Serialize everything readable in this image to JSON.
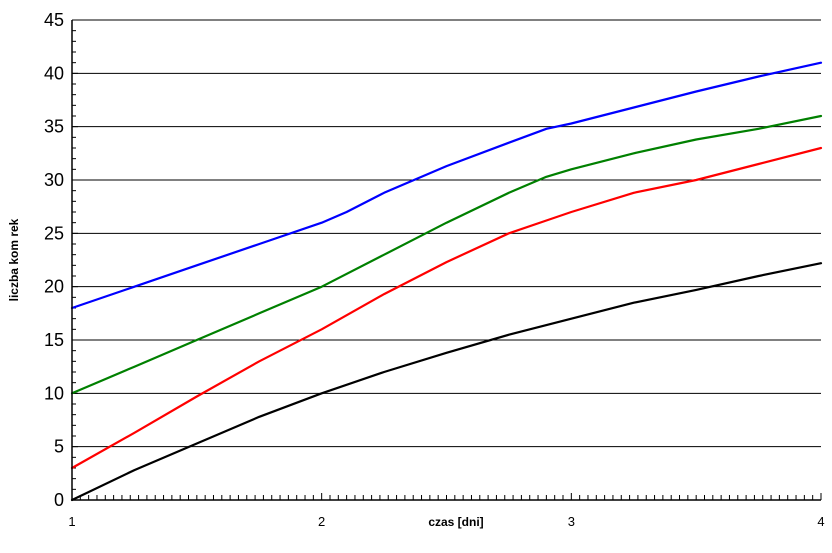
{
  "chart_data": {
    "type": "line",
    "xlabel": "czas [dni]",
    "ylabel": "liczba kom rek",
    "xlim": [
      1,
      4
    ],
    "ylim": [
      0,
      45
    ],
    "x_ticks": [
      "1",
      "2",
      "3",
      "4"
    ],
    "y_ticks": [
      "0",
      "5",
      "10",
      "15",
      "20",
      "25",
      "30",
      "35",
      "40",
      "45"
    ],
    "grid": "horizontal",
    "legend": "none",
    "series": [
      {
        "color": "#0000ff",
        "x": [
          1.0,
          1.25,
          1.5,
          1.75,
          2.0,
          2.1,
          2.25,
          2.5,
          2.75,
          2.9,
          3.0,
          3.25,
          3.5,
          3.75,
          4.0
        ],
        "y": [
          18,
          20,
          22,
          24,
          26,
          27,
          28.8,
          31.3,
          33.5,
          34.8,
          35.3,
          36.8,
          38.3,
          39.7,
          41
        ]
      },
      {
        "color": "#008000",
        "x": [
          1.0,
          1.25,
          1.5,
          1.75,
          2.0,
          2.25,
          2.5,
          2.75,
          2.9,
          3.0,
          3.25,
          3.5,
          3.75,
          4.0
        ],
        "y": [
          10,
          12.5,
          15,
          17.5,
          20,
          23,
          26,
          28.8,
          30.3,
          31,
          32.5,
          33.8,
          34.8,
          36
        ]
      },
      {
        "color": "#ff0000",
        "x": [
          1.0,
          1.25,
          1.5,
          1.75,
          2.0,
          2.25,
          2.5,
          2.75,
          2.9,
          3.0,
          3.25,
          3.5,
          3.75,
          4.0
        ],
        "y": [
          3,
          6.3,
          9.7,
          13,
          16,
          19.3,
          22.3,
          25,
          26.2,
          27,
          28.8,
          30,
          31.5,
          33
        ]
      },
      {
        "color": "#000000",
        "x": [
          1.0,
          1.25,
          1.5,
          1.75,
          2.0,
          2.25,
          2.5,
          2.75,
          3.0,
          3.25,
          3.5,
          3.75,
          4.0
        ],
        "y": [
          0,
          2.8,
          5.3,
          7.8,
          10,
          12,
          13.8,
          15.5,
          17,
          18.5,
          19.7,
          21,
          22.2
        ]
      }
    ]
  }
}
